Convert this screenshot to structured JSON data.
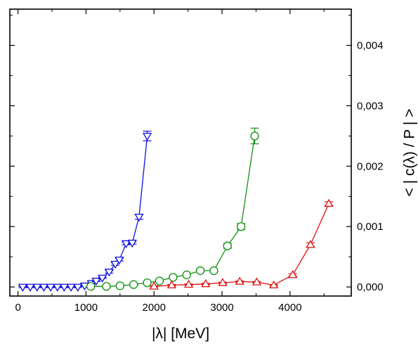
{
  "chart_data": {
    "type": "line",
    "xlabel": "|λ|  [MeV]",
    "ylabel": "< | c(λ) / P | >",
    "xlim": [
      -120,
      4900
    ],
    "ylim": [
      -0.00015,
      0.0046
    ],
    "xticks": [
      0,
      1000,
      2000,
      3000,
      4000
    ],
    "xtick_labels": [
      "0",
      "1000",
      "2000",
      "3000",
      "4000"
    ],
    "yticks": [
      0.0,
      0.001,
      0.002,
      0.003,
      0.004
    ],
    "ytick_labels": [
      "0,000",
      "0,001",
      "0,002",
      "0,003",
      "0,004"
    ],
    "y_axis_side": "right",
    "grid": false,
    "legend": "none",
    "series": [
      {
        "color": "#1010e0",
        "marker": "triangle-down",
        "x": [
          70,
          180,
          280,
          380,
          480,
          580,
          680,
          780,
          880,
          980,
          1080,
          1150,
          1240,
          1340,
          1430,
          1490,
          1590,
          1680,
          1780,
          1900
        ],
        "y": [
          0.0,
          0.0,
          0.0,
          0.0,
          0.0,
          0.0,
          0.0,
          0.0,
          0.0,
          2e-05,
          6e-05,
          0.0001,
          0.00015,
          0.00025,
          0.00038,
          0.00045,
          0.00072,
          0.00073,
          0.00116,
          0.0025
        ],
        "err": [
          1e-05,
          1e-05,
          1e-05,
          1e-05,
          1e-05,
          1e-05,
          1e-05,
          1e-05,
          1e-05,
          1e-05,
          1e-05,
          1e-05,
          1e-05,
          2e-05,
          2e-05,
          2e-05,
          2e-05,
          2e-05,
          4e-05,
          8e-05
        ]
      },
      {
        "color": "#109010",
        "marker": "circle",
        "x": [
          1070,
          1300,
          1500,
          1700,
          1900,
          2080,
          2280,
          2480,
          2680,
          2880,
          3080,
          3280,
          3480
        ],
        "y": [
          1e-05,
          1e-05,
          2e-05,
          4e-05,
          7e-05,
          0.0001,
          0.00016,
          0.0002,
          0.00027,
          0.00027,
          0.00068,
          0.001,
          0.0025
        ],
        "err": [
          1e-05,
          1e-05,
          1e-05,
          1e-05,
          1e-05,
          1e-05,
          1e-05,
          1e-05,
          2e-05,
          2e-05,
          4e-05,
          5e-05,
          0.00013
        ]
      },
      {
        "color": "#e01010",
        "marker": "triangle-up",
        "x": [
          2000,
          2260,
          2510,
          2760,
          3010,
          3260,
          3510,
          3760,
          4040,
          4300,
          4570
        ],
        "y": [
          1e-05,
          3e-05,
          4e-05,
          5e-05,
          7e-05,
          9e-05,
          8e-05,
          3e-05,
          0.0002,
          0.0007,
          0.00138
        ],
        "err": [
          1e-05,
          1e-05,
          1e-05,
          1e-05,
          1e-05,
          1e-05,
          1e-05,
          1e-05,
          2e-05,
          3e-05,
          3e-05
        ]
      }
    ]
  }
}
